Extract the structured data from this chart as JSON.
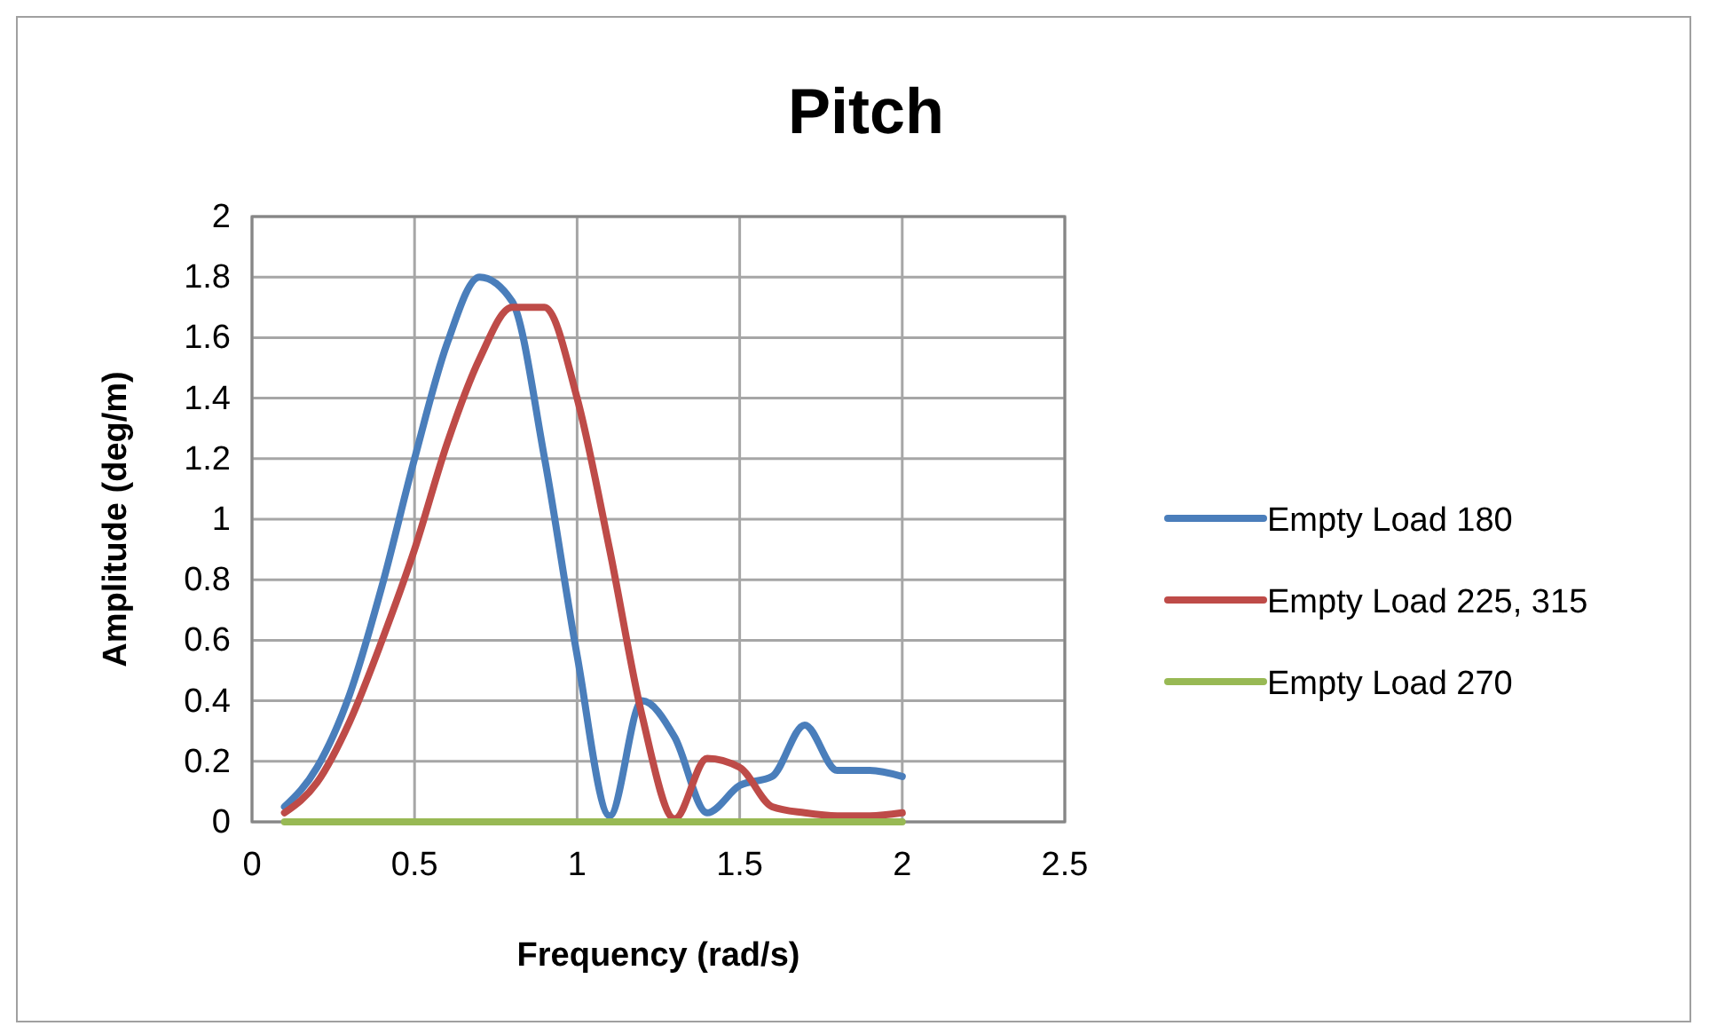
{
  "chart_data": {
    "type": "line",
    "title": "Pitch",
    "xlabel": "Frequency (rad/s)",
    "ylabel": "Amplitude (deg/m)",
    "x": [
      0.1,
      0.2,
      0.3,
      0.4,
      0.5,
      0.6,
      0.7,
      0.8,
      0.9,
      1.0,
      1.1,
      1.2,
      1.3,
      1.4,
      1.5,
      1.6,
      1.7,
      1.8,
      1.9,
      2.0
    ],
    "series": [
      {
        "name": "Empty Load 180",
        "color": "#4a7ebb",
        "values": [
          0.05,
          0.18,
          0.42,
          0.78,
          1.2,
          1.58,
          1.8,
          1.72,
          1.2,
          0.55,
          0.02,
          0.4,
          0.28,
          0.03,
          0.12,
          0.15,
          0.32,
          0.17,
          0.17,
          0.15
        ]
      },
      {
        "name": "Empty Load 225, 315",
        "color": "#be4b48",
        "values": [
          0.03,
          0.13,
          0.33,
          0.6,
          0.9,
          1.25,
          1.53,
          1.7,
          1.7,
          1.4,
          0.9,
          0.35,
          0.01,
          0.21,
          0.18,
          0.05,
          0.03,
          0.02,
          0.02,
          0.03
        ]
      },
      {
        "name": "Empty Load 270",
        "color": "#98b954",
        "values": [
          0,
          0,
          0,
          0,
          0,
          0,
          0,
          0,
          0,
          0,
          0,
          0,
          0,
          0,
          0,
          0,
          0,
          0,
          0,
          0
        ]
      }
    ],
    "xlim": [
      0,
      2.5
    ],
    "xticks": [
      0,
      0.5,
      1,
      1.5,
      2,
      2.5
    ],
    "ylim": [
      0,
      2
    ],
    "yticks": [
      0,
      0.2,
      0.4,
      0.6,
      0.8,
      1,
      1.2,
      1.4,
      1.6,
      1.8,
      2
    ],
    "grid": true,
    "legend": "right",
    "marker": "none",
    "line_style": "solid"
  }
}
